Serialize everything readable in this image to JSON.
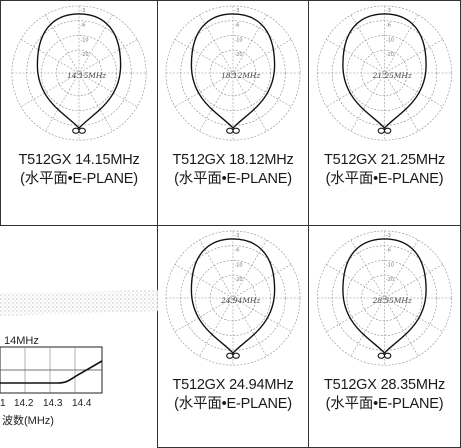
{
  "panels": [
    {
      "model": "T512GX 14.15MHz",
      "plane": "(水平面•E-PLANE)",
      "inner": "14.15MHz"
    },
    {
      "model": "T512GX 18.12MHz",
      "plane": "(水平面•E-PLANE)",
      "inner": "18.12MHz"
    },
    {
      "model": "T512GX 21.25MHz",
      "plane": "(水平面•E-PLANE)",
      "inner": "21.25MHz"
    },
    {
      "model": "T512GX 24.94MHz",
      "plane": "(水平面•E-PLANE)",
      "inner": "24.94MHz"
    },
    {
      "model": "T512GX 28.35MHz",
      "plane": "(水平面•E-PLANE)",
      "inner": "28.35MHz"
    }
  ],
  "ring_labels": [
    "-3",
    "-6",
    "-10",
    "-20"
  ],
  "swr_chart": {
    "title": "14MHz",
    "x_ticks": [
      "1",
      "14.2",
      "14.3",
      "14.4"
    ],
    "xlabel": "波数(MHz)"
  }
}
